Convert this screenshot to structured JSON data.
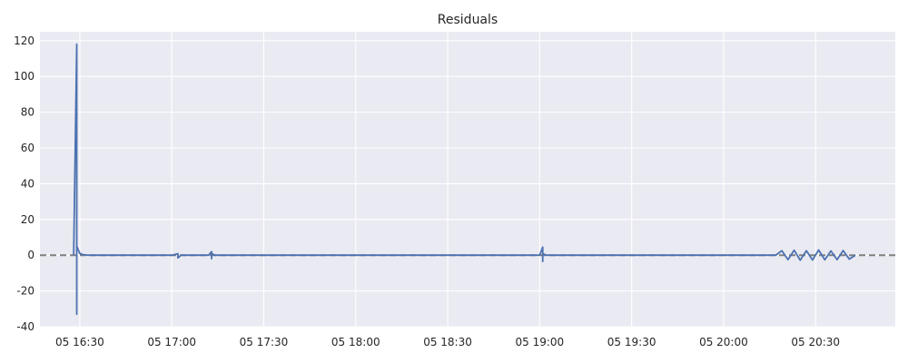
{
  "chart_data": {
    "type": "line",
    "title": "Residuals",
    "xlabel": "",
    "ylabel": "",
    "x_tick_labels": [
      "05 16:30",
      "05 17:00",
      "05 17:30",
      "05 18:00",
      "05 18:30",
      "05 19:00",
      "05 19:30",
      "05 20:00",
      "05 20:30"
    ],
    "x_ticks": [
      "16:30",
      "17:00",
      "17:30",
      "18:00",
      "18:30",
      "19:00",
      "19:30",
      "20:00",
      "20:30"
    ],
    "xlim": [
      "16:17",
      "20:56"
    ],
    "y_ticks": [
      -40,
      -20,
      0,
      20,
      40,
      60,
      80,
      100,
      120
    ],
    "ylim": [
      -40,
      125
    ],
    "grid": true,
    "reference_line": {
      "y": 0,
      "style": "dashed",
      "color": "#808080"
    },
    "series": [
      {
        "color": "#4c72b0",
        "x": [
          "16:28",
          "16:29",
          "16:29",
          "16:29",
          "16:29",
          "16:29",
          "16:30",
          "16:31",
          "16:33",
          "17:00",
          "17:02",
          "17:02",
          "17:03",
          "17:12",
          "17:13",
          "17:13",
          "17:13",
          "17:14",
          "18:30",
          "19:00",
          "19:01",
          "19:01",
          "19:01",
          "19:02",
          "20:00",
          "20:17",
          "20:19",
          "20:21",
          "20:23",
          "20:25",
          "20:27",
          "20:29",
          "20:31",
          "20:33",
          "20:35",
          "20:37",
          "20:39",
          "20:41",
          "20:43"
        ],
        "y": [
          0,
          118,
          -33,
          18,
          -7,
          5,
          1,
          0.3,
          0,
          0,
          0.8,
          -1.5,
          0,
          0,
          2,
          -2,
          1,
          0,
          0,
          0,
          4.5,
          -3.5,
          1,
          0,
          0,
          0,
          2.5,
          -2.5,
          2.8,
          -2.8,
          2.5,
          -2.7,
          2.9,
          -2.6,
          2.4,
          -2.5,
          2.6,
          -2.2,
          0
        ]
      }
    ]
  }
}
